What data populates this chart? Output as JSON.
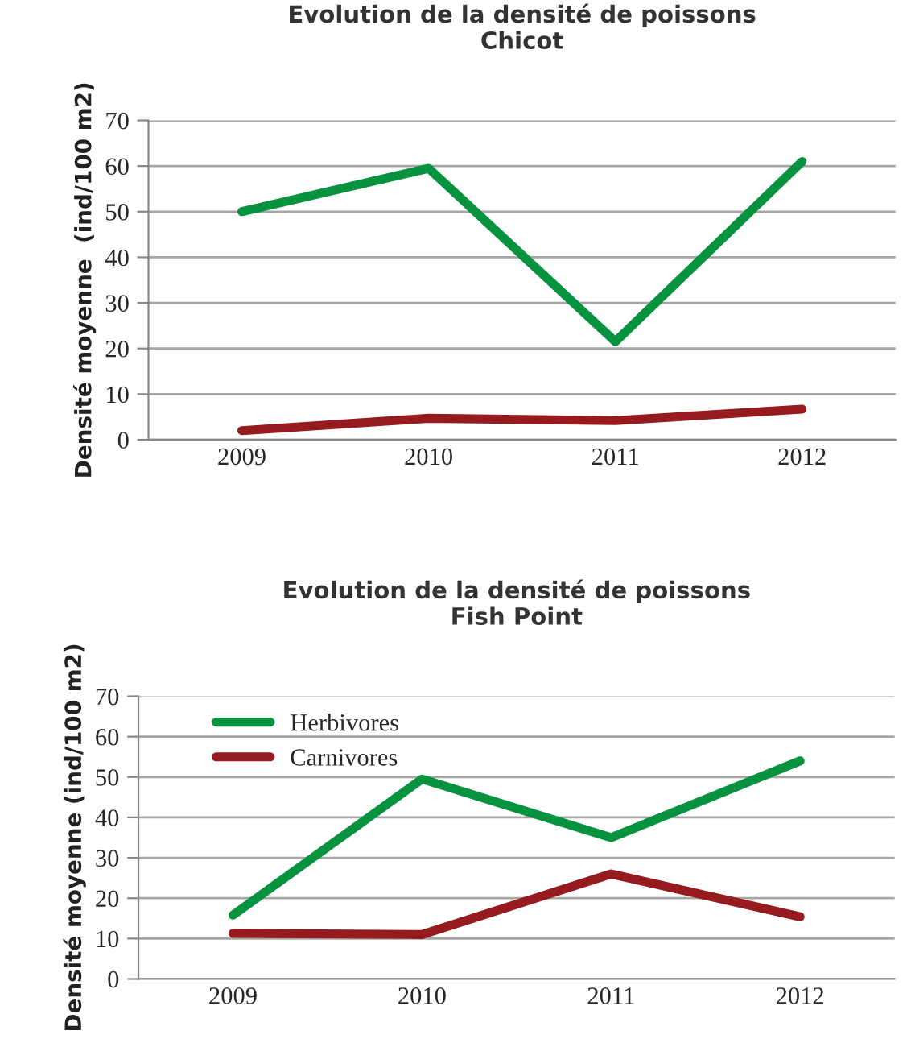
{
  "chart_data": [
    {
      "type": "line",
      "title": "Evolution de la densité de poissons\nChicot",
      "ylabel": "Densité moyenne  (ind/100 m2)",
      "categories": [
        "2009",
        "2010",
        "2011",
        "2012"
      ],
      "ylim": [
        0,
        70
      ],
      "yticks": [
        0,
        10,
        20,
        30,
        40,
        50,
        60,
        70
      ],
      "grid": "y",
      "legend": false,
      "series": [
        {
          "color": "#06923e",
          "values": [
            50,
            59.5,
            21.5,
            61
          ]
        },
        {
          "color": "#951b1e",
          "values": [
            2,
            4.7,
            4.2,
            6.7
          ]
        }
      ]
    },
    {
      "type": "line",
      "title": "Evolution de la densité de poissons\nFish Point",
      "ylabel": "Densité moyenne (ind/100 m2)",
      "categories": [
        "2009",
        "2010",
        "2011",
        "2012"
      ],
      "ylim": [
        0,
        70
      ],
      "yticks": [
        0,
        10,
        20,
        30,
        40,
        50,
        60,
        70
      ],
      "grid": "y",
      "legend": "top left",
      "series": [
        {
          "name": "Herbivores",
          "color": "#06923e",
          "values": [
            15.8,
            49.5,
            35,
            54
          ]
        },
        {
          "name": "Carnivores",
          "color": "#951b1e",
          "values": [
            11.3,
            11,
            26,
            15.4
          ]
        }
      ]
    }
  ]
}
